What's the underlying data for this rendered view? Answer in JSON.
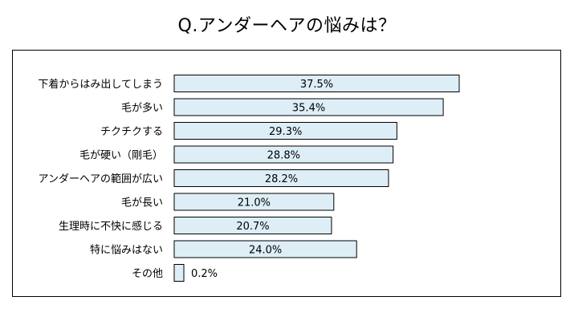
{
  "chart_data": {
    "type": "bar",
    "orientation": "horizontal",
    "title": "Q.アンダーヘアの悩みは？",
    "categories": [
      "下着からはみ出してしまう",
      "毛が多い",
      "チクチクする",
      "毛が硬い（剛毛）",
      "アンダーヘアの範囲が広い",
      "毛が長い",
      "生理時に不快に感じる",
      "特に悩みはない",
      "その他"
    ],
    "values": [
      37.5,
      35.4,
      29.3,
      28.8,
      28.2,
      21.0,
      20.7,
      24.0,
      0.2
    ],
    "value_labels": [
      "37.5%",
      "35.4%",
      "29.3%",
      "28.8%",
      "28.2%",
      "21.0%",
      "20.7%",
      "24.0%",
      "0.2%"
    ],
    "unit": "%",
    "xlim": [
      0,
      37.5
    ],
    "grid": false,
    "legend": "none",
    "colors": {
      "bar_fill": "#ddeef7",
      "bar_stroke": "#000000",
      "frame": "#000000",
      "text": "#000000"
    }
  }
}
